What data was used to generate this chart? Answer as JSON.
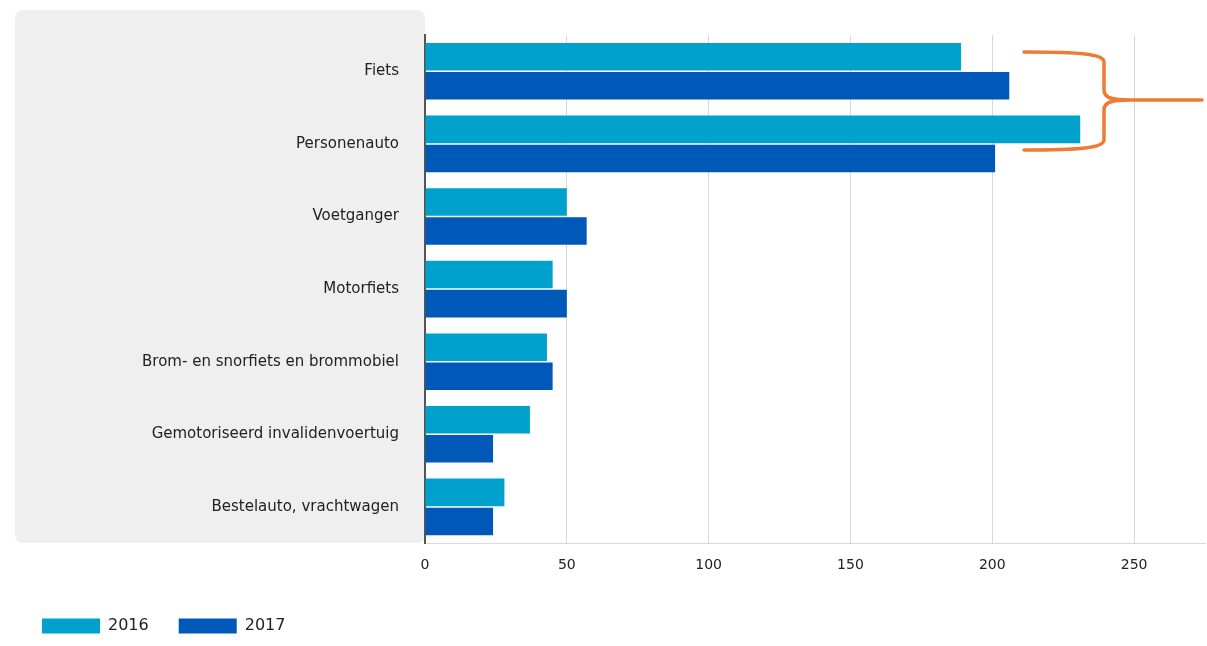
{
  "chart_data": {
    "type": "bar",
    "orientation": "horizontal",
    "categories": [
      "Fiets",
      "Personenauto",
      "Voetganger",
      "Motorfiets",
      "Brom- en snorfiets en brommobiel",
      "Gemotoriseerd invalidenvoertuig",
      "Bestelauto, vrachtwagen"
    ],
    "series": [
      {
        "name": "2016",
        "color": "#00a1cd",
        "values": [
          189,
          231,
          50,
          45,
          43,
          37,
          28
        ]
      },
      {
        "name": "2017",
        "color": "#0058b8",
        "values": [
          206,
          201,
          57,
          50,
          45,
          24,
          24
        ]
      }
    ],
    "xlim": [
      0,
      275
    ],
    "xticks": [
      0,
      50,
      100,
      150,
      200,
      250
    ],
    "grid": "x",
    "legend": "bottom left"
  }
}
